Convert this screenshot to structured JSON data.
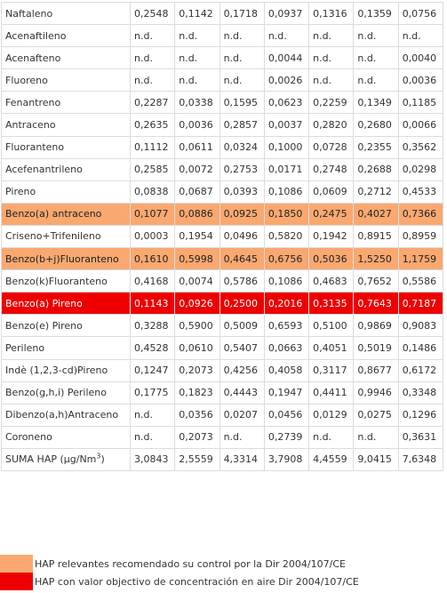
{
  "table": {
    "rows": [
      {
        "name": "Naftaleno",
        "highlight": "",
        "values": [
          "0,2548",
          "0,1142",
          "0,1718",
          "0,0937",
          "0,1316",
          "0,1359",
          "0,0756"
        ]
      },
      {
        "name": "Acenaftileno",
        "highlight": "",
        "values": [
          "n.d.",
          "n.d.",
          "n.d.",
          "n.d.",
          "n.d.",
          "n.d.",
          "n.d."
        ]
      },
      {
        "name": "Acenafteno",
        "highlight": "",
        "values": [
          "n.d.",
          "n.d.",
          "n.d.",
          "0,0044",
          "n.d.",
          "n.d.",
          "0,0040"
        ]
      },
      {
        "name": "Fluoreno",
        "highlight": "",
        "values": [
          "n.d.",
          "n.d.",
          "n.d.",
          "0,0026",
          "n.d.",
          "n.d.",
          "0,0036"
        ]
      },
      {
        "name": "Fenantreno",
        "highlight": "",
        "values": [
          "0,2287",
          "0,0338",
          "0,1595",
          "0,0623",
          "0,2259",
          "0,1349",
          "0,1185"
        ]
      },
      {
        "name": "Antraceno",
        "highlight": "",
        "values": [
          "0,2635",
          "0,0036",
          "0,2857",
          "0,0037",
          "0,2820",
          "0,2680",
          "0,0066"
        ]
      },
      {
        "name": "Fluoranteno",
        "highlight": "",
        "values": [
          "0,1112",
          "0,0611",
          "0,0324",
          "0,1000",
          "0,0728",
          "0,2355",
          "0,3562"
        ]
      },
      {
        "name": "Acefenantrileno",
        "highlight": "",
        "values": [
          "0,2585",
          "0,0072",
          "0,2753",
          "0,0171",
          "0,2748",
          "0,2688",
          "0,0298"
        ]
      },
      {
        "name": "Pireno",
        "highlight": "",
        "values": [
          "0,0838",
          "0,0687",
          "0,0393",
          "0,1086",
          "0,0609",
          "0,2712",
          "0,4533"
        ]
      },
      {
        "name": "Benzo(a) antraceno",
        "highlight": "orange",
        "values": [
          "0,1077",
          "0,0886",
          "0,0925",
          "0,1850",
          "0,2475",
          "0,4027",
          "0,7366"
        ]
      },
      {
        "name": "Criseno+Trifenileno",
        "highlight": "",
        "values": [
          "0,0003",
          "0,1954",
          "0,0496",
          "0,5820",
          "0,1942",
          "0,8915",
          "0,8959"
        ]
      },
      {
        "name": "Benzo(b+j)Fluoranteno",
        "highlight": "orange",
        "values": [
          "0,1610",
          "0,5998",
          "0,4645",
          "0,6756",
          "0,5036",
          "1,5250",
          "1,1759"
        ]
      },
      {
        "name": "Benzo(k)Fluoranteno",
        "highlight": "",
        "values": [
          "0,4168",
          "0,0074",
          "0,5786",
          "0,1086",
          "0,4683",
          "0,7652",
          "0,5586"
        ]
      },
      {
        "name": "Benzo(a) Pireno",
        "highlight": "red",
        "values": [
          "0,1143",
          "0,0926",
          "0,2500",
          "0,2016",
          "0,3135",
          "0,7643",
          "0,7187"
        ]
      },
      {
        "name": "Benzo(e) Pireno",
        "highlight": "",
        "values": [
          "0,3288",
          "0,5900",
          "0,5009",
          "0,6593",
          "0,5100",
          "0,9869",
          "0,9083"
        ]
      },
      {
        "name": "Perileno",
        "highlight": "",
        "values": [
          "0,4528",
          "0,0610",
          "0,5407",
          "0,0663",
          "0,4051",
          "0,5019",
          "0,1486"
        ]
      },
      {
        "name": "Indè (1,2,3-cd)Pireno",
        "highlight": "",
        "values": [
          "0,1247",
          "0,2073",
          "0,4256",
          "0,4058",
          "0,3117",
          "0,8677",
          "0,6172"
        ]
      },
      {
        "name": "Benzo(g,h,i) Perileno",
        "highlight": "",
        "values": [
          "0,1775",
          "0,1823",
          "0,4443",
          "0,1947",
          "0,4411",
          "0,9946",
          "0,3348"
        ]
      },
      {
        "name": "Dibenzo(a,h)Antraceno",
        "highlight": "",
        "values": [
          "n.d.",
          "0,0356",
          "0,0207",
          "0,0456",
          "0,0129",
          "0,0275",
          "0,1296"
        ]
      },
      {
        "name": "Coroneno",
        "highlight": "",
        "values": [
          "n.d.",
          "0,2073",
          "n.d.",
          "0,2739",
          "n.d.",
          "n.d.",
          "0,3631"
        ]
      }
    ],
    "total_row": {
      "name_text": "SUMA HAP (µg/Nm",
      "name_sup": "3",
      "name_close": ")",
      "values": [
        "3,0843",
        "2,5559",
        "4,3314",
        "3,7908",
        "4,4559",
        "9,0415",
        "7,6348"
      ]
    }
  },
  "legend": {
    "items": [
      {
        "color": "#f9a870",
        "text": "HAP relevantes recomendado su control por la Dir 2004/107/CE"
      },
      {
        "color": "#ee0000",
        "text": "HAP con valor objectivo de concentración en aire Dir 2004/107/CE"
      }
    ]
  }
}
